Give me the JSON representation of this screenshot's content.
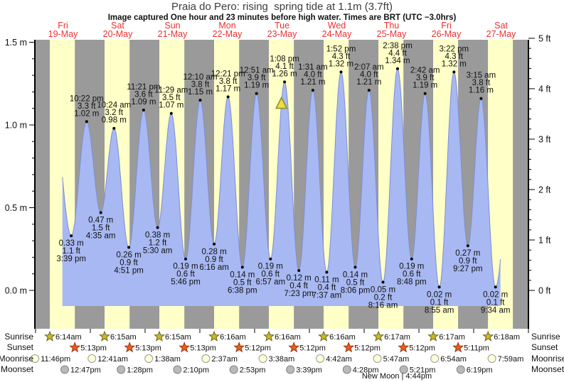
{
  "title": "Praia do Pero: rising  spring tide at 1.1m (3.7ft)",
  "subtitle": "Image captured One hour and 23 minutes before high water. Times are BRT (UTC −3.0hrs)",
  "row_labels": {
    "sunrise": "Sunrise",
    "sunset": "Sunset",
    "moonrise": "Moonrise",
    "moonset": "Moonset"
  },
  "new_moon": "New Moon | 4:44pm",
  "colors": {
    "night_band": "#9a9a9a",
    "day_band": "#ffffc8",
    "tide_fill": "#a8b8f2",
    "tide_edge": "#7d8fd6",
    "day_label": "#f03030",
    "annotation": "#111111",
    "axis": "#000000",
    "sunrise_icon": "#c9b829",
    "sunrise_icon_edge": "#6f6516",
    "sunset_icon": "#e2611c",
    "sunset_icon_edge": "#a33311",
    "moonrise_icon": "#ffffd6",
    "moonrise_icon_edge": "#9a9a9a",
    "moonset_icon": "#b9b9b9",
    "moonset_icon_edge": "#848484",
    "now_marker": "#e9e23e",
    "now_marker_edge": "#8f8a28"
  },
  "icons": {
    "sunrise": "star",
    "sunset": "star",
    "moonrise": "circle",
    "moonset": "circle",
    "now": "triangle"
  },
  "chart_data": {
    "type": "area",
    "title": "Praia do Pero: rising  spring tide at 1.1m (3.7ft)",
    "x_unit": "days since Fri 19-May 00:00 (BRT)",
    "ylim_m": [
      -0.1,
      1.55
    ],
    "grid": false,
    "days": [
      {
        "name": "Fri",
        "date": "19-May",
        "sr": 6.23,
        "ss": 17.22
      },
      {
        "name": "Sat",
        "date": "20-May",
        "sr": 6.25,
        "ss": 17.22
      },
      {
        "name": "Sun",
        "date": "21-May",
        "sr": 6.25,
        "ss": 17.22
      },
      {
        "name": "Mon",
        "date": "22-May",
        "sr": 6.27,
        "ss": 17.2
      },
      {
        "name": "Tue",
        "date": "23-May",
        "sr": 6.27,
        "ss": 17.2
      },
      {
        "name": "Wed",
        "date": "24-May",
        "sr": 6.27,
        "ss": 17.2
      },
      {
        "name": "Thu",
        "date": "25-May",
        "sr": 6.28,
        "ss": 17.2
      },
      {
        "name": "Fri",
        "date": "26-May",
        "sr": 6.28,
        "ss": 17.18
      },
      {
        "name": "Sat",
        "date": "27-May",
        "sr": 6.3,
        "ss": 17.18
      }
    ],
    "tides": [
      {
        "type": "low",
        "t": 0.652,
        "m": 0.33,
        "labels": [
          "0.33 m",
          "1.1 ft",
          "3:39 pm"
        ]
      },
      {
        "type": "high",
        "t": 0.932,
        "m": 1.02,
        "labels": [
          "10:22 pm",
          "3.3 ft",
          "1.02 m"
        ]
      },
      {
        "type": "low",
        "t": 1.191,
        "m": 0.47,
        "labels": [
          "0.47 m",
          "1.5 ft",
          "4:35 am"
        ]
      },
      {
        "type": "high",
        "t": 1.433,
        "m": 0.98,
        "labels": [
          "10:24 am",
          "3.2 ft",
          "0.98 m"
        ]
      },
      {
        "type": "low",
        "t": 1.702,
        "m": 0.26,
        "labels": [
          "0.26 m",
          "0.9 ft",
          "4:51 pm"
        ]
      },
      {
        "type": "high",
        "t": 1.973,
        "m": 1.09,
        "labels": [
          "11:21 pm",
          "3.6 ft",
          "1.09 m"
        ]
      },
      {
        "type": "low",
        "t": 2.229,
        "m": 0.38,
        "labels": [
          "0.38 m",
          "1.2 ft",
          "5:30 am"
        ]
      },
      {
        "type": "high",
        "t": 2.478,
        "m": 1.07,
        "labels": [
          "11:29 am",
          "3.5 ft",
          "1.07 m"
        ]
      },
      {
        "type": "low",
        "t": 2.74,
        "m": 0.19,
        "labels": [
          "0.19 m",
          "0.6 ft",
          "5:46 pm"
        ]
      },
      {
        "type": "high",
        "t": 3.007,
        "m": 1.15,
        "labels": [
          "12:10 am",
          "3.8 ft",
          "1.15 m"
        ]
      },
      {
        "type": "low",
        "t": 3.261,
        "m": 0.28,
        "labels": [
          "0.28 m",
          "0.9 ft",
          "6:16 am"
        ]
      },
      {
        "type": "high",
        "t": 3.515,
        "m": 1.17,
        "labels": [
          "12:21 pm",
          "3.8 ft",
          "1.17 m"
        ]
      },
      {
        "type": "low",
        "t": 3.776,
        "m": 0.14,
        "labels": [
          "0.14 m",
          "0.5 ft",
          "6:38 pm"
        ]
      },
      {
        "type": "high",
        "t": 4.035,
        "m": 1.19,
        "labels": [
          "12:51 am",
          "3.9 ft",
          "1.19 m"
        ]
      },
      {
        "type": "low",
        "t": 4.29,
        "m": 0.19,
        "labels": [
          "0.19 m",
          "0.6 ft",
          "6:57 am"
        ]
      },
      {
        "type": "high",
        "t": 4.547,
        "m": 1.26,
        "labels": [
          "1:08 pm",
          "4.1 ft",
          "1.26 m"
        ]
      },
      {
        "type": "low",
        "t": 4.808,
        "m": 0.12,
        "labels": [
          "0.12 m",
          "0.4 ft",
          "7:23 pm"
        ]
      },
      {
        "type": "high",
        "t": 5.063,
        "m": 1.21,
        "labels": [
          "1:31 am",
          "4.0 ft",
          "1.21 m"
        ]
      },
      {
        "type": "low",
        "t": 5.317,
        "m": 0.11,
        "labels": [
          "0.11 m",
          "0.4 ft",
          "7:37 am"
        ]
      },
      {
        "type": "high",
        "t": 5.578,
        "m": 1.32,
        "labels": [
          "1:52 pm",
          "4.3 ft",
          "1.32 m"
        ]
      },
      {
        "type": "low",
        "t": 5.838,
        "m": 0.14,
        "labels": [
          "0.14 m",
          "0.5 ft",
          "8:06 pm"
        ]
      },
      {
        "type": "high",
        "t": 6.088,
        "m": 1.21,
        "labels": [
          "2:07 am",
          "4.0 ft",
          "1.21 m"
        ]
      },
      {
        "type": "low",
        "t": 6.344,
        "m": 0.05,
        "labels": [
          "0.05 m",
          "0.2 ft",
          "8:16 am"
        ]
      },
      {
        "type": "high",
        "t": 6.61,
        "m": 1.34,
        "labels": [
          "2:38 pm",
          "4.4 ft",
          "1.34 m"
        ]
      },
      {
        "type": "low",
        "t": 6.867,
        "m": 0.19,
        "labels": [
          "0.19 m",
          "0.6 ft",
          "8:48 pm"
        ]
      },
      {
        "type": "high",
        "t": 7.113,
        "m": 1.19,
        "labels": [
          "2:42 am",
          "3.9 ft",
          "1.19 m"
        ]
      },
      {
        "type": "low",
        "t": 7.372,
        "m": 0.02,
        "labels": [
          "0.02 m",
          "0.1 ft",
          "8:55 am"
        ]
      },
      {
        "type": "high",
        "t": 7.64,
        "m": 1.32,
        "labels": [
          "3:22 pm",
          "4.3 ft",
          "1.32 m"
        ]
      },
      {
        "type": "low",
        "t": 7.894,
        "m": 0.27,
        "labels": [
          "0.27 m",
          "0.9 ft",
          "9:27 pm"
        ]
      },
      {
        "type": "high",
        "t": 8.135,
        "m": 1.16,
        "labels": [
          "3:15 am",
          "3.8 ft",
          "1.16 m"
        ]
      },
      {
        "type": "low",
        "t": 8.399,
        "m": 0.02,
        "labels": [
          "0.02 m",
          "0.1 ft",
          "9:34 am"
        ]
      }
    ],
    "curve": {
      "t_start": 0.49,
      "t_end": 8.49,
      "virtual_start": {
        "t": 0.34,
        "m": 1.0
      },
      "virtual_end": {
        "t": 8.75,
        "m": 1.1
      }
    },
    "now_marker": {
      "t": 4.49
    },
    "axis": {
      "left": [
        {
          "m": 0.0,
          "label": "0.0 m"
        },
        {
          "m": 0.5,
          "label": "0.5 m"
        },
        {
          "m": 1.0,
          "label": "1.0 m"
        },
        {
          "m": 1.5,
          "label": "1.5 m"
        }
      ],
      "right": [
        {
          "ft": 0,
          "label": "0 ft"
        },
        {
          "ft": 1,
          "label": "1 ft"
        },
        {
          "ft": 2,
          "label": "2 ft"
        },
        {
          "ft": 3,
          "label": "3 ft"
        },
        {
          "ft": 4,
          "label": "4 ft"
        },
        {
          "ft": 5,
          "label": "5 ft"
        }
      ]
    },
    "sun": {
      "sunrise": [
        {
          "t": 0.26,
          "label": "6:14am"
        },
        {
          "t": 1.26,
          "label": "6:15am"
        },
        {
          "t": 2.26,
          "label": "6:15am"
        },
        {
          "t": 3.261,
          "label": "6:16am"
        },
        {
          "t": 4.261,
          "label": "6:16am"
        },
        {
          "t": 5.261,
          "label": "6:16am"
        },
        {
          "t": 6.262,
          "label": "6:17am"
        },
        {
          "t": 7.262,
          "label": "6:17am"
        },
        {
          "t": 8.263,
          "label": "6:18am"
        }
      ],
      "sunset": [
        {
          "t": 0.717,
          "label": "5:13pm"
        },
        {
          "t": 1.717,
          "label": "5:13pm"
        },
        {
          "t": 2.717,
          "label": "5:13pm"
        },
        {
          "t": 3.717,
          "label": "5:12pm"
        },
        {
          "t": 4.717,
          "label": "5:12pm"
        },
        {
          "t": 5.717,
          "label": "5:12pm"
        },
        {
          "t": 6.717,
          "label": "5:12pm"
        },
        {
          "t": 7.716,
          "label": "5:11pm"
        }
      ]
    },
    "moon": {
      "moonrise": [
        {
          "t": -0.01,
          "label": "11:46pm"
        },
        {
          "t": 1.028,
          "label": "12:41am"
        },
        {
          "t": 2.068,
          "label": "1:38am"
        },
        {
          "t": 3.109,
          "label": "2:37am"
        },
        {
          "t": 4.151,
          "label": "3:38am"
        },
        {
          "t": 5.196,
          "label": "4:42am"
        },
        {
          "t": 6.241,
          "label": "5:47am"
        },
        {
          "t": 7.288,
          "label": "6:54am"
        },
        {
          "t": 8.333,
          "label": "7:59am"
        }
      ],
      "moonset": [
        {
          "t": 0.533,
          "label": "12:47pm"
        },
        {
          "t": 1.561,
          "label": "1:28pm"
        },
        {
          "t": 2.59,
          "label": "2:10pm"
        },
        {
          "t": 3.62,
          "label": "2:53pm"
        },
        {
          "t": 4.652,
          "label": "3:39pm"
        },
        {
          "t": 5.686,
          "label": "4:28pm"
        },
        {
          "t": 6.723,
          "label": "5:21pm"
        },
        {
          "t": 7.763,
          "label": "6:19pm"
        }
      ]
    }
  }
}
